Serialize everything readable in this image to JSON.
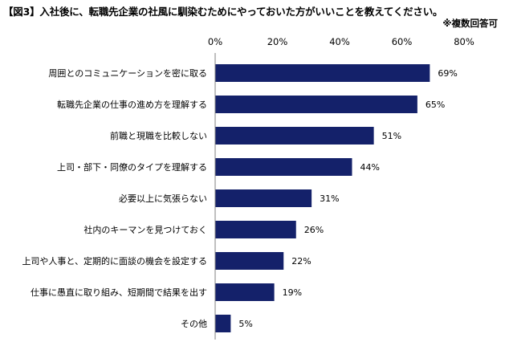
{
  "chart_data": {
    "type": "bar",
    "orientation": "horizontal",
    "title": "【図3】入社後に、転職先企業の社風に馴染むためにやっておいた方がいいことを教えてください。",
    "note": "※複数回答可",
    "categories": [
      "周囲とのコミュニケーションを密に取る",
      "転職先企業の仕事の進め方を理解する",
      "前職と現職を比較しない",
      "上司・部下・同僚のタイプを理解する",
      "必要以上に気張らない",
      "社内のキーマンを見つけておく",
      "上司や人事と、定期的に面談の機会を設定する",
      "仕事に愚直に取り組み、短期間で結果を出す",
      "その他"
    ],
    "values": [
      69,
      65,
      51,
      44,
      31,
      26,
      22,
      19,
      5
    ],
    "data_labels": [
      "69%",
      "65%",
      "51%",
      "44%",
      "31%",
      "26%",
      "22%",
      "19%",
      "5%"
    ],
    "xlim": [
      0,
      80
    ],
    "xticks": [
      0,
      20,
      40,
      60,
      80
    ],
    "xtick_labels": [
      "0%",
      "20%",
      "40%",
      "60%",
      "80%"
    ],
    "xaxis_position": "top",
    "grid": false,
    "bar_color": "#14216a"
  }
}
